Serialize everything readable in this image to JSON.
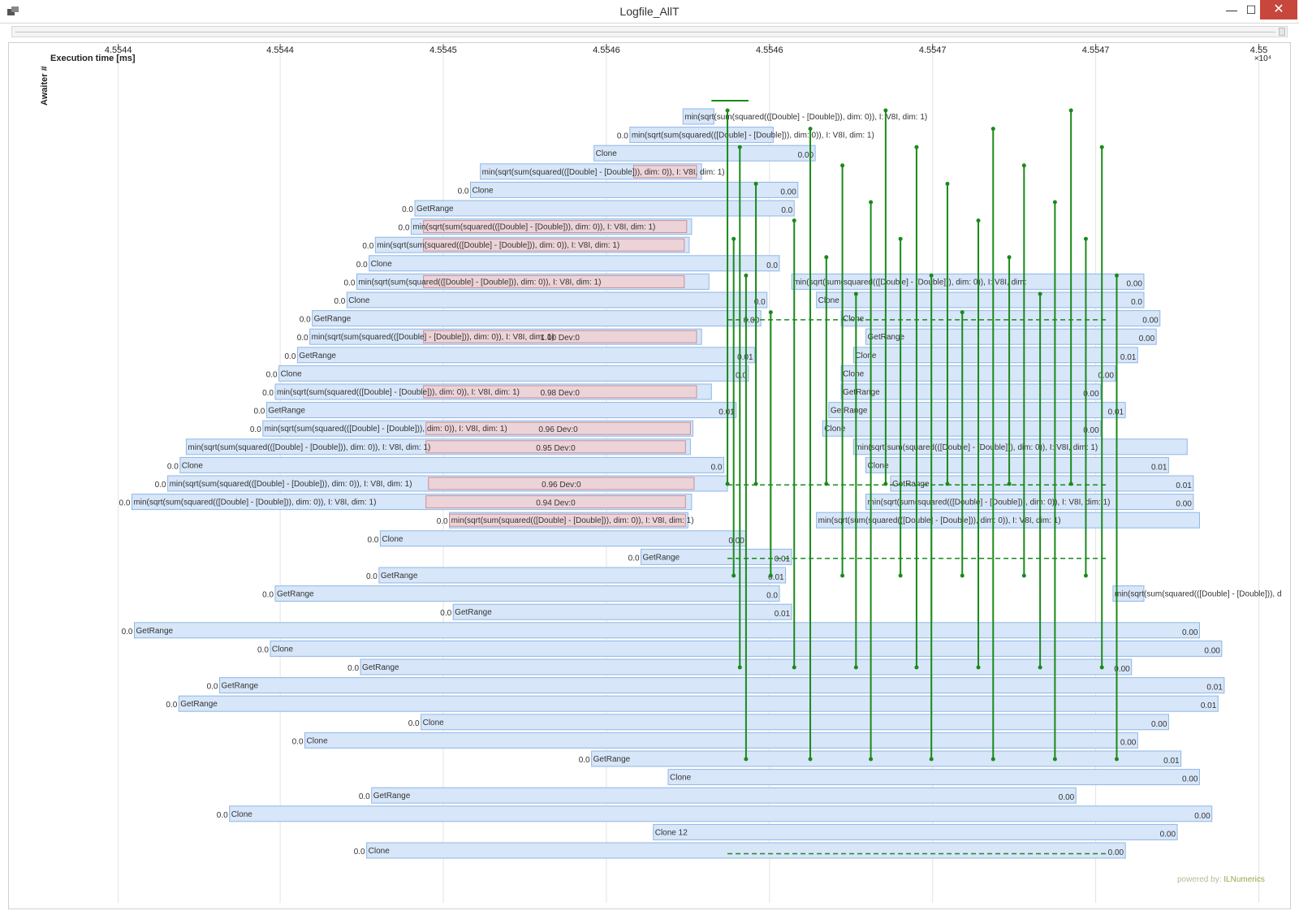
{
  "window": {
    "title": "Logfile_AllT",
    "icon": "app-window-icon",
    "minimize_glyph": "—",
    "maximize_glyph": "☐",
    "close_glyph": "✕"
  },
  "watermark": {
    "prefix": "powered by: ",
    "brand": "ILNumerics"
  },
  "chart_data": {
    "type": "gantt",
    "xlabel": "Execution time [ms]",
    "ylabel": "Awaiter #",
    "x_exponent_label": "×10⁴",
    "xticks": [
      "4.5544",
      "4.5544",
      "4.5545",
      "4.5546",
      "4.5546",
      "4.5547",
      "4.5547",
      "4.55"
    ],
    "xlim": [
      0,
      1
    ],
    "colors": {
      "bar_fill": "#d7e6f8",
      "bar_stroke": "#8fb6e6",
      "dev_fill": "#ecd3d7",
      "dev_stroke": "#c98f98",
      "link": "#1a8a1a",
      "grid": "#e3e3e3"
    },
    "rows": [
      {
        "lane": 0,
        "start": 0.512,
        "end": 0.537,
        "label": "min(sqrt(sum(squared(([Double] - [Double])), dim: 0)), I: V8I, dim: 1)"
      },
      {
        "lane": 1,
        "start": 0.469,
        "end": 0.585,
        "label": "min(sqrt(sum(squared(([Double] - [Double])), dim: 0)), I: V8I, dim: 1)",
        "pre": "0.0"
      },
      {
        "lane": 2,
        "start": 0.44,
        "end": 0.619,
        "label": "Clone",
        "end_label": "0.00"
      },
      {
        "lane": 3,
        "start": 0.348,
        "end": 0.527,
        "label": "min(sqrt(sum(squared(([Double] - [Double])), dim: 0)), I: V8I, dim: 1)",
        "dev_start": 0.472,
        "dev_end": 0.523
      },
      {
        "lane": 4,
        "start": 0.34,
        "end": 0.605,
        "label": "Clone",
        "pre": "0.0",
        "end_label": "0.00"
      },
      {
        "lane": 5,
        "start": 0.295,
        "end": 0.602,
        "label": "GetRange",
        "pre": "0.0",
        "end_label": "0.0"
      },
      {
        "lane": 6,
        "start": 0.292,
        "end": 0.519,
        "label": "min(sqrt(sum(squared(([Double] - [Double])), dim: 0)), I: V8I, dim: 1)",
        "pre": "0.0",
        "dev_start": 0.302,
        "dev_end": 0.515
      },
      {
        "lane": 7,
        "start": 0.263,
        "end": 0.517,
        "label": "min(sqrt(sum(squared(([Double] - [Double])), dim: 0)), I: V8I, dim: 1)",
        "pre": "0.0",
        "dev_start": 0.302,
        "dev_end": 0.513
      },
      {
        "lane": 8,
        "start": 0.258,
        "end": 0.59,
        "label": "Clone",
        "pre": "0.0",
        "end_label": "0.0"
      },
      {
        "lane": 9,
        "start": 0.248,
        "end": 0.533,
        "label": "min(sqrt(sum(squared(([Double] - [Double])), dim: 0)), I: V8I, dim: 1)",
        "pre": "0.0",
        "dev_start": 0.302,
        "dev_end": 0.513
      },
      {
        "lane": 10,
        "start": 0.24,
        "end": 0.58,
        "label": "Clone",
        "pre": "0.0",
        "end_label": "0.0"
      },
      {
        "lane": 11,
        "start": 0.212,
        "end": 0.575,
        "label": "GetRange",
        "pre": "0.0",
        "end_label": "0.00"
      },
      {
        "lane": 12,
        "start": 0.21,
        "end": 0.527,
        "label": "min(sqrt(sum(squared(([Double] - [Double])), dim: 0)), I: V8I, dim: 1)",
        "pre": "0.0",
        "dev_start": 0.302,
        "dev_end": 0.523,
        "dev_label": "1.00 Dev:0"
      },
      {
        "lane": 13,
        "start": 0.2,
        "end": 0.57,
        "label": "GetRange",
        "pre": "0.0",
        "end_label": "0.01"
      },
      {
        "lane": 14,
        "start": 0.185,
        "end": 0.565,
        "label": "Clone",
        "pre": "0.0",
        "end_label": "0.0"
      },
      {
        "lane": 15,
        "start": 0.182,
        "end": 0.535,
        "label": "min(sqrt(sum(squared(([Double] - [Double])), dim: 0)), I: V8I, dim: 1)",
        "pre": "0.0",
        "dev_start": 0.302,
        "dev_end": 0.523,
        "dev_label": "0.98 Dev:0"
      },
      {
        "lane": 16,
        "start": 0.175,
        "end": 0.555,
        "label": "GetRange",
        "pre": "0.0",
        "end_label": "0.01"
      },
      {
        "lane": 17,
        "start": 0.172,
        "end": 0.52,
        "label": "min(sqrt(sum(squared(([Double] - [Double])), dim: 0)), I: V8I, dim: 1)",
        "pre": "0.0",
        "dev_start": 0.304,
        "dev_end": 0.518,
        "dev_label": "0.96 Dev:0"
      },
      {
        "lane": 18,
        "start": 0.11,
        "end": 0.518,
        "label": "min(sqrt(sum(squared(([Double] - [Double])), dim: 0)), I: V8I, dim: 1)",
        "dev_start": 0.304,
        "dev_end": 0.514,
        "dev_label": "0.95 Dev:0"
      },
      {
        "lane": 19,
        "start": 0.105,
        "end": 0.545,
        "label": "Clone",
        "pre": "0.0",
        "end_label": "0.0"
      },
      {
        "lane": 20,
        "start": 0.095,
        "end": 0.548,
        "label": "min(sqrt(sum(squared(([Double] - [Double])), dim: 0)), I: V8I, dim: 1)",
        "pre": "0.0",
        "dev_start": 0.306,
        "dev_end": 0.521,
        "dev_label": "0.96 Dev:0"
      },
      {
        "lane": 21,
        "start": 0.066,
        "end": 0.519,
        "label": "min(sqrt(sum(squared(([Double] - [Double])), dim: 0)), I: V8I, dim: 1)",
        "pre": "0.0",
        "dev_start": 0.304,
        "dev_end": 0.514,
        "dev_label": "0.94 Dev:0"
      },
      {
        "lane": 22,
        "start": 0.323,
        "end": 0.516,
        "label": "min(sqrt(sum(squared(([Double] - [Double])), dim: 0)), I: V8I, dim: 1)",
        "pre": "0.0",
        "dev_start": 0.323,
        "dev_end": 0.514
      },
      {
        "lane": 23,
        "start": 0.267,
        "end": 0.563,
        "label": "Clone",
        "pre": "0.0",
        "end_label": "0.00"
      },
      {
        "lane": 24,
        "start": 0.478,
        "end": 0.6,
        "label": "GetRange",
        "pre": "0.0",
        "end_label": "0.01"
      },
      {
        "lane": 25,
        "start": 0.266,
        "end": 0.595,
        "label": "GetRange",
        "pre": "0.0",
        "end_label": "0.01"
      },
      {
        "lane": 26,
        "start": 0.182,
        "end": 0.59,
        "label": "GetRange",
        "pre": "0.0",
        "end_label": "0.0"
      },
      {
        "lane": 27,
        "start": 0.326,
        "end": 0.6,
        "label": "GetRange",
        "pre": "0.0",
        "end_label": "0.01"
      },
      {
        "lane": 28,
        "start": 0.068,
        "end": 0.93,
        "label": "GetRange",
        "pre": "0.0",
        "end_label": "0.00"
      },
      {
        "lane": 29,
        "start": 0.178,
        "end": 0.948,
        "label": "Clone",
        "pre": "0.0",
        "end_label": "0.00"
      },
      {
        "lane": 30,
        "start": 0.251,
        "end": 0.875,
        "label": "GetRange",
        "pre": "0.0",
        "end_label": "0.00"
      },
      {
        "lane": 31,
        "start": 0.137,
        "end": 0.95,
        "label": "GetRange",
        "pre": "0.0",
        "end_label": "0.01"
      },
      {
        "lane": 32,
        "start": 0.104,
        "end": 0.945,
        "label": "GetRange",
        "pre": "0.0",
        "end_label": "0.01"
      },
      {
        "lane": 33,
        "start": 0.3,
        "end": 0.905,
        "label": "Clone",
        "pre": "0.0",
        "end_label": "0.00"
      },
      {
        "lane": 34,
        "start": 0.206,
        "end": 0.88,
        "label": "Clone",
        "pre": "0.0",
        "end_label": "0.00"
      },
      {
        "lane": 35,
        "start": 0.438,
        "end": 0.915,
        "label": "GetRange",
        "pre": "0.0",
        "end_label": "0.01"
      },
      {
        "lane": 36,
        "start": 0.5,
        "end": 0.93,
        "label": "Clone",
        "end_label": "0.00"
      },
      {
        "lane": 37,
        "start": 0.26,
        "end": 0.83,
        "label": "GetRange",
        "pre": "0.0",
        "end_label": "0.00"
      },
      {
        "lane": 38,
        "start": 0.145,
        "end": 0.94,
        "label": "Clone",
        "pre": "0.0",
        "end_label": "0.00"
      },
      {
        "lane": 39,
        "start": 0.488,
        "end": 0.912,
        "label": "Clone 12",
        "end_label": "0.00"
      },
      {
        "lane": 40,
        "start": 0.256,
        "end": 0.87,
        "label": "Clone",
        "pre": "0.0",
        "end_label": "0.00"
      }
    ],
    "right_cluster": [
      {
        "lane": 9,
        "start": 0.6,
        "end": 0.885,
        "label": "min(sqrt(sum(squared(([Double] - [Double])), dim: 0)), I: V8I, dim:",
        "end_label": "0.00"
      },
      {
        "lane": 10,
        "start": 0.62,
        "end": 0.885,
        "label": "Clone",
        "end_label": "0.0"
      },
      {
        "lane": 11,
        "start": 0.64,
        "end": 0.898,
        "label": "Clone",
        "end_label": "0.00"
      },
      {
        "lane": 12,
        "start": 0.66,
        "end": 0.895,
        "label": "GetRange",
        "end_label": "0.00"
      },
      {
        "lane": 13,
        "start": 0.65,
        "end": 0.88,
        "label": "Clone",
        "end_label": "0.01"
      },
      {
        "lane": 14,
        "start": 0.64,
        "end": 0.862,
        "label": "Clone",
        "end_label": "0.00"
      },
      {
        "lane": 15,
        "start": 0.64,
        "end": 0.85,
        "label": "GetRange",
        "end_label": "0.00"
      },
      {
        "lane": 16,
        "start": 0.63,
        "end": 0.87,
        "label": "GetRange",
        "end_label": "0.01"
      },
      {
        "lane": 17,
        "start": 0.625,
        "end": 0.85,
        "label": "Clone",
        "end_label": "0.00"
      },
      {
        "lane": 18,
        "start": 0.65,
        "end": 0.92,
        "label": "min(sqrt(sum(squared(([Double] - [Double])), dim: 0)), I: V8I, dim: 1)"
      },
      {
        "lane": 19,
        "start": 0.66,
        "end": 0.905,
        "label": "Clone",
        "end_label": "0.01"
      },
      {
        "lane": 20,
        "start": 0.68,
        "end": 0.925,
        "label": "GetRange",
        "end_label": "0.01"
      },
      {
        "lane": 21,
        "start": 0.66,
        "end": 0.925,
        "label": "min(sqrt(sum(squared(([Double] - [Double])), dim: 0)), I: V8I, dim: 1)",
        "end_label": "0.00"
      },
      {
        "lane": 22,
        "start": 0.62,
        "end": 0.93,
        "label": "min(sqrt(sum(squared(([Double] - [Double])), dim: 0)), I: V8I, dim: 1)"
      },
      {
        "lane": 26,
        "start": 0.86,
        "end": 0.885,
        "label": "min(sqrt(sum(squared(([Double] - [Double])), d"
      }
    ],
    "links_x": [
      0.548,
      0.553,
      0.558,
      0.563,
      0.571,
      0.583,
      0.602,
      0.615,
      0.628,
      0.641,
      0.652,
      0.664,
      0.676,
      0.688,
      0.701,
      0.713,
      0.726,
      0.738,
      0.751,
      0.763,
      0.776,
      0.788,
      0.801,
      0.813,
      0.826,
      0.838,
      0.851,
      0.863
    ]
  }
}
